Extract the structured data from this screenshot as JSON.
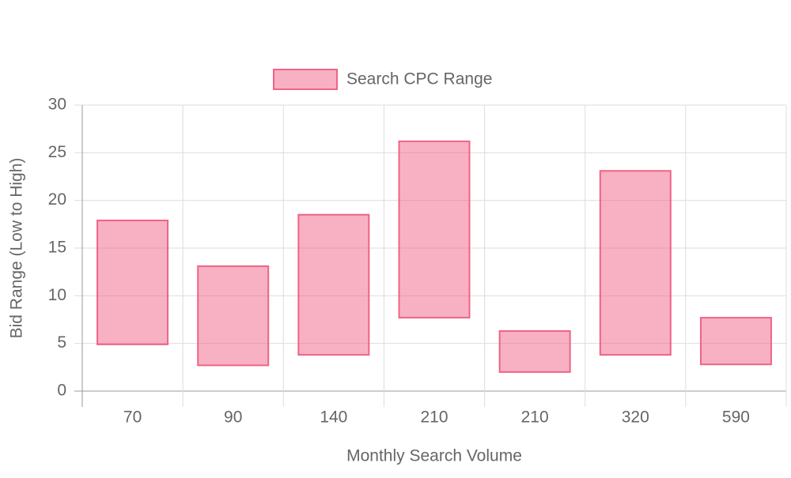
{
  "chart_data": {
    "type": "floating-bar",
    "x_label": "Monthly Search Volume",
    "y_label": "Bid Range (Low to High)",
    "categories": [
      "70",
      "90",
      "140",
      "210",
      "210",
      "320",
      "590"
    ],
    "series": [
      {
        "name": "Search CPC Range",
        "color": "#f06386",
        "values": [
          [
            4.9,
            17.9
          ],
          [
            2.7,
            13.1
          ],
          [
            3.8,
            18.5
          ],
          [
            7.7,
            26.2
          ],
          [
            2.0,
            6.3
          ],
          [
            3.8,
            23.1
          ],
          [
            2.8,
            7.7
          ]
        ]
      }
    ],
    "ylim": [
      0,
      30
    ],
    "yticks": [
      0,
      5,
      10,
      15,
      20,
      25,
      30
    ],
    "grid": true,
    "legend": "top"
  }
}
